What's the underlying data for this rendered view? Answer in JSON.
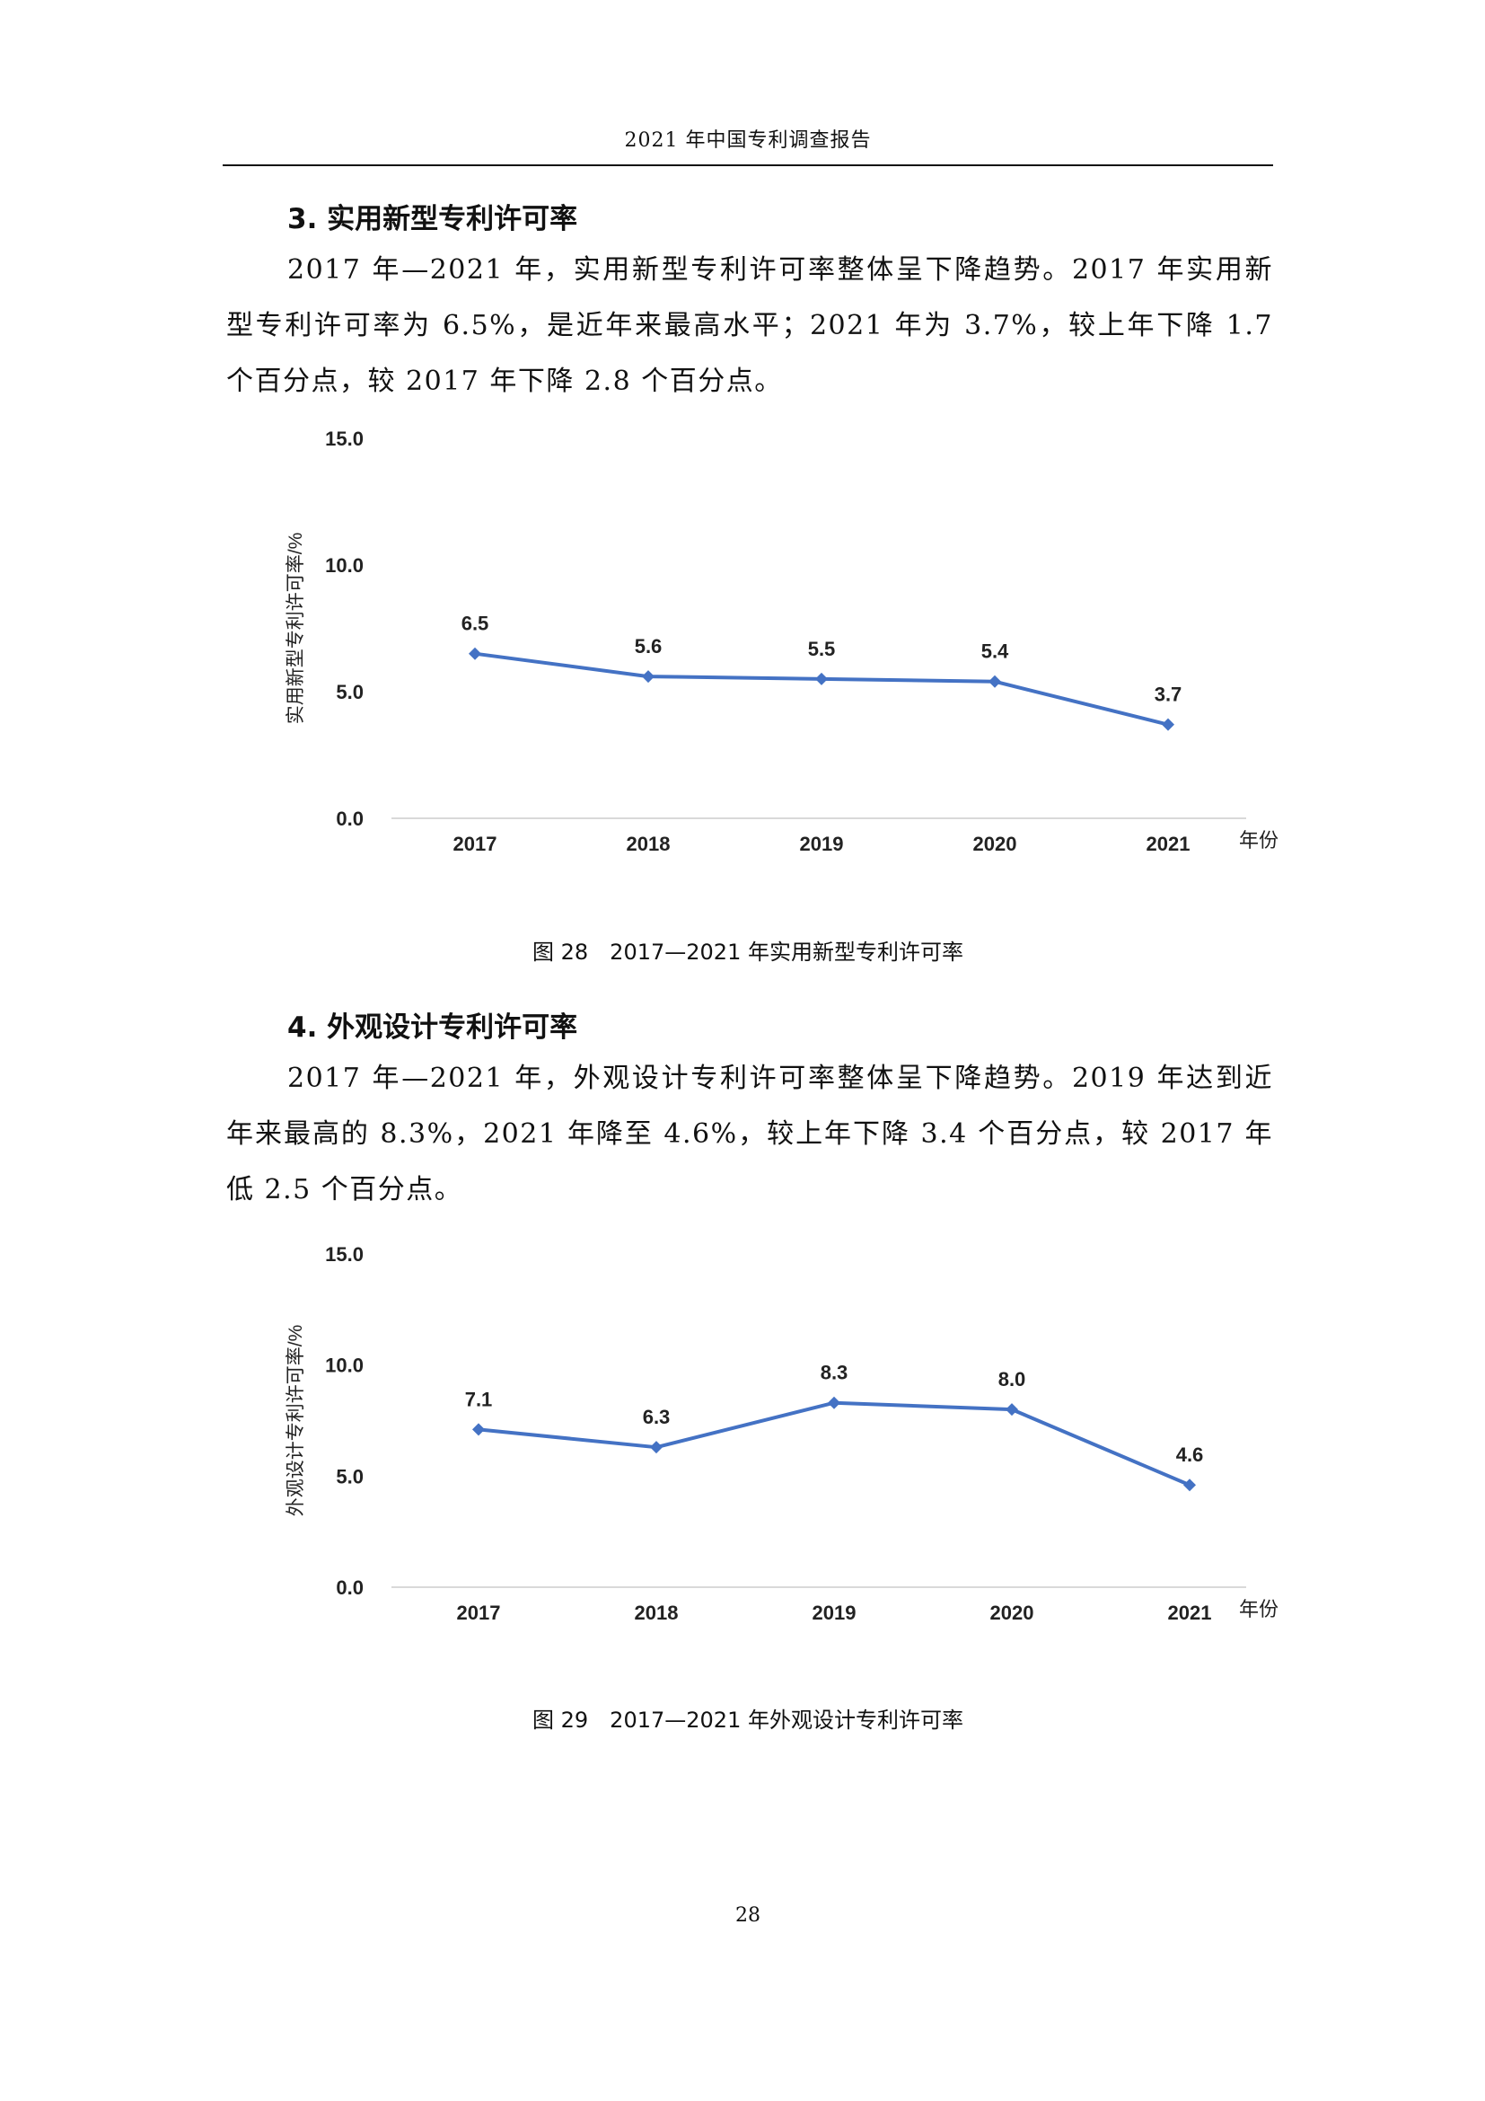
{
  "header": {
    "title": "2021 年中国专利调查报告"
  },
  "section3": {
    "title": "3. 实用新型专利许可率",
    "paragraph": "2017 年—2021 年，实用新型专利许可率整体呈下降趋势。2017 年实用新型专利许可率为 6.5%，是近年来最高水平；2021 年为 3.7%，较上年下降 1.7 个百分点，较 2017 年下降 2.8 个百分点。"
  },
  "section4": {
    "title": "4. 外观设计专利许可率",
    "paragraph": "2017 年—2021 年，外观设计专利许可率整体呈下降趋势。2019 年达到近年来最高的 8.3%，2021 年降至 4.6%，较上年下降 3.4 个百分点，较 2017 年低 2.5 个百分点。"
  },
  "figure28": {
    "caption": "图 28　2017—2021 年实用新型专利许可率"
  },
  "figure29": {
    "caption": "图 29　2017—2021 年外观设计专利许可率"
  },
  "page_number": "28",
  "chart_data": [
    {
      "type": "line",
      "categories": [
        "2017",
        "2018",
        "2019",
        "2020",
        "2021"
      ],
      "values": [
        6.5,
        5.6,
        5.5,
        5.4,
        3.7
      ],
      "data_labels": [
        "6.5",
        "5.6",
        "5.5",
        "5.4",
        "3.7"
      ],
      "ylabel": "实用新型专利许可率/%",
      "xlabel": "年份",
      "ylim": [
        0,
        15
      ],
      "yticks": [
        "0.0",
        "5.0",
        "10.0",
        "15.0"
      ],
      "grid": false,
      "color": "#4472C4"
    },
    {
      "type": "line",
      "categories": [
        "2017",
        "2018",
        "2019",
        "2020",
        "2021"
      ],
      "values": [
        7.1,
        6.3,
        8.3,
        8.0,
        4.6
      ],
      "data_labels": [
        "7.1",
        "6.3",
        "8.3",
        "8.0",
        "4.6"
      ],
      "ylabel": "外观设计专利许可率/%",
      "xlabel": "年份",
      "ylim": [
        0,
        15
      ],
      "yticks": [
        "0.0",
        "5.0",
        "10.0",
        "15.0"
      ],
      "grid": false,
      "color": "#4472C4"
    }
  ]
}
